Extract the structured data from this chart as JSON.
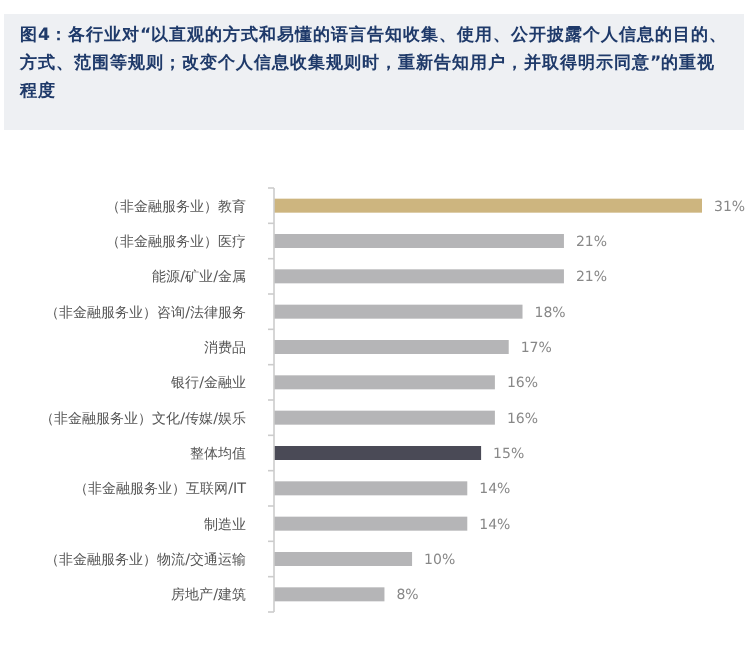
{
  "chart_data": {
    "type": "bar",
    "orientation": "horizontal",
    "title": "图4：各行业对“以直观的方式和易懂的语言告知收集、使用、公开披露个人信息的目的、方式、范围等规则；改变个人信息收集规则时，重新告知用户，并取得明示同意”的重视程度",
    "categories": [
      "（非金融服务业）教育",
      "（非金融服务业）医疗",
      "能源/矿业/金属",
      "（非金融服务业）咨询/法律服务",
      "消费品",
      "银行/金融业",
      "（非金融服务业）文化/传媒/娱乐",
      "整体均值",
      "（非金融服务业）互联网/IT",
      "制造业",
      "（非金融服务业）物流/交通运输",
      "房地产/建筑"
    ],
    "values": [
      31,
      21,
      21,
      18,
      17,
      16,
      16,
      15,
      14,
      14,
      10,
      8
    ],
    "colors": [
      "#cdb57f",
      "#b5b5b7",
      "#b5b5b7",
      "#b5b5b7",
      "#b5b5b7",
      "#b5b5b7",
      "#b5b5b7",
      "#4a4a56",
      "#b5b5b7",
      "#b5b5b7",
      "#b5b5b7",
      "#b5b5b7"
    ],
    "value_labels": [
      "31%",
      "21%",
      "21%",
      "18%",
      "17%",
      "16%",
      "16%",
      "15%",
      "14%",
      "14%",
      "10%",
      "8%"
    ]
  }
}
